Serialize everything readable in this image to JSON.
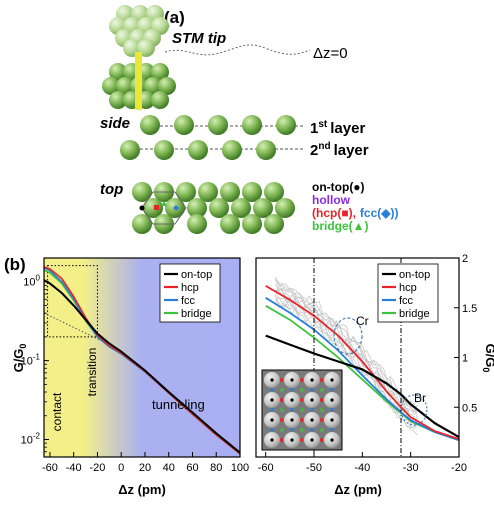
{
  "panel_a": {
    "label": "(a)",
    "stm_tip": "STM tip",
    "dz0": "Δz=0",
    "side": "side",
    "layer1_num": "1",
    "layer1_sup": "st",
    "layer1_word": "layer",
    "layer2_num": "2",
    "layer2_sup": "nd",
    "layer2_word": "layer",
    "top": "top",
    "legend": {
      "ontop": "on-top(●)",
      "hollow": "hollow",
      "hcp": "(hcp(■),",
      "fcc": "fcc(◆))",
      "bridge": "bridge(▲)"
    }
  },
  "panel_b": {
    "label": "(b)"
  },
  "colors": {
    "ontop": "#000000",
    "hcp": "#e8242a",
    "fcc": "#2a7fd8",
    "bridge": "#3cc43c",
    "hollow": "#8a2be2"
  },
  "chart_data": [
    {
      "type": "line",
      "xlabel": "Δz (pm)",
      "ylabel": "G/G",
      "ylabel_sub": "0",
      "xlim": [
        -65,
        100
      ],
      "ylim": [
        0.006,
        2
      ],
      "yscale": "log",
      "xticks": [
        -60,
        -40,
        -20,
        0,
        20,
        40,
        60,
        80,
        100
      ],
      "ytick_labels": [
        "10",
        "10",
        "10"
      ],
      "ytick_exps": [
        "0",
        "-1",
        "-2"
      ],
      "regions": [
        "contact",
        "transition",
        "tunneling"
      ],
      "legend": [
        "on-top",
        "hcp",
        "fcc",
        "bridge"
      ],
      "series": [
        {
          "name": "on-top",
          "x": [
            -65,
            -60,
            -50,
            -40,
            -30,
            -20,
            -10,
            0,
            20,
            40,
            60,
            80,
            100
          ],
          "y": [
            1.05,
            0.95,
            0.72,
            0.5,
            0.33,
            0.22,
            0.165,
            0.13,
            0.075,
            0.04,
            0.022,
            0.012,
            0.0068
          ]
        },
        {
          "name": "hcp",
          "x": [
            -65,
            -60,
            -50,
            -40,
            -30,
            -20,
            -10,
            0,
            20,
            40,
            60,
            80,
            100
          ],
          "y": [
            1.55,
            1.45,
            1.1,
            0.65,
            0.35,
            0.21,
            0.155,
            0.125,
            0.073,
            0.039,
            0.021,
            0.0115,
            0.0066
          ]
        },
        {
          "name": "fcc",
          "x": [
            -65,
            -60,
            -50,
            -40,
            -30,
            -20,
            -10,
            0,
            20,
            40,
            60,
            80,
            100
          ],
          "y": [
            1.5,
            1.38,
            1.0,
            0.6,
            0.33,
            0.2,
            0.15,
            0.122,
            0.072,
            0.039,
            0.021,
            0.0115,
            0.0066
          ]
        },
        {
          "name": "bridge",
          "x": [
            -65,
            -60,
            -50,
            -40,
            -30,
            -20,
            -10,
            0,
            20,
            40,
            60,
            80,
            100
          ],
          "y": [
            1.4,
            1.3,
            0.95,
            0.58,
            0.32,
            0.2,
            0.15,
            0.122,
            0.073,
            0.039,
            0.021,
            0.0115,
            0.0066
          ]
        }
      ]
    },
    {
      "type": "line",
      "xlabel": "Δz (pm)",
      "ylabel": "G/G",
      "ylabel_sub": "0",
      "xlim": [
        -62,
        -20
      ],
      "ylim": [
        0,
        2
      ],
      "xticks": [
        -60,
        -50,
        -40,
        -30,
        -20
      ],
      "yticks": [
        0.5,
        1,
        1.5,
        2
      ],
      "ytick_labels": [
        "0.5",
        "1",
        "1.5",
        "2"
      ],
      "annotations": [
        "Cr",
        "Br"
      ],
      "legend": [
        "on-top",
        "hcp",
        "fcc",
        "bridge"
      ],
      "series": [
        {
          "name": "on-top",
          "x": [
            -60,
            -55,
            -50,
            -45,
            -40,
            -35,
            -32,
            -30,
            -25,
            -20
          ],
          "y": [
            1.22,
            1.13,
            1.04,
            0.96,
            0.88,
            0.74,
            0.63,
            0.53,
            0.34,
            0.2
          ]
        },
        {
          "name": "hcp",
          "x": [
            -60,
            -55,
            -50,
            -45,
            -40,
            -35,
            -32,
            -30,
            -25,
            -20
          ],
          "y": [
            1.72,
            1.58,
            1.42,
            1.22,
            0.96,
            0.66,
            0.5,
            0.4,
            0.26,
            0.18
          ]
        },
        {
          "name": "fcc",
          "x": [
            -60,
            -55,
            -50,
            -45,
            -40,
            -35,
            -32,
            -30,
            -25,
            -20
          ],
          "y": [
            1.6,
            1.45,
            1.28,
            1.07,
            0.82,
            0.58,
            0.45,
            0.37,
            0.25,
            0.17
          ]
        },
        {
          "name": "bridge",
          "x": [
            -60,
            -55,
            -50,
            -45,
            -40,
            -35,
            -32,
            -30,
            -25,
            -20
          ],
          "y": [
            1.52,
            1.38,
            1.2,
            1.0,
            0.78,
            0.56,
            0.44,
            0.36,
            0.25,
            0.17
          ]
        }
      ]
    }
  ]
}
